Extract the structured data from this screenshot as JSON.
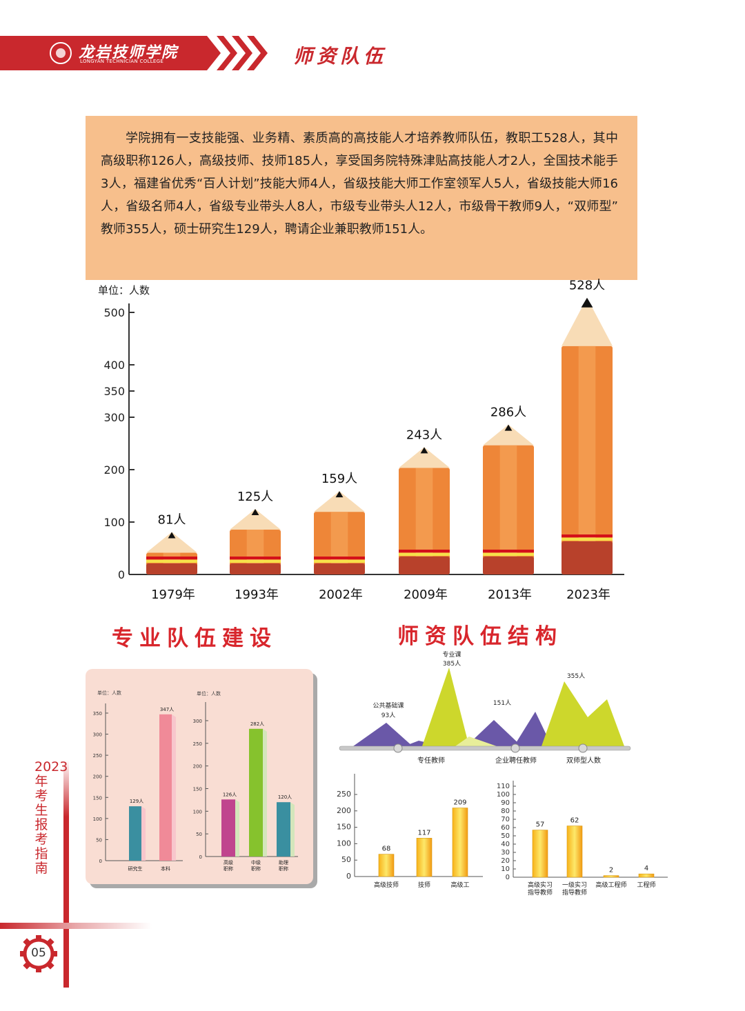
{
  "header": {
    "school_name": "龙岩技师学院",
    "school_name_en": "LONGYAN TECHNICIAN COLLEGE",
    "section_title": "师资队伍",
    "logo_icon": "school-emblem-icon",
    "accent_color": "#c9282d"
  },
  "intro": {
    "text": "学院拥有一支技能强、业务精、素质高的高技能人才培养教师队伍，教职工528人，其中高级职称126人，高级技师、技师185人，享受国务院特殊津贴高技能人才2人，全国技术能手3人，福建省优秀“百人计划”技能大师4人，省级技能大师工作室领军人5人，省级技能大师16人，省级名师4人，省级专业带头人8人，市级专业带头人12人，市级骨干教师9人，“双师型” 教师355人，硕士研究生129人，聘请企业兼职教师151人。",
    "bg_color": "#f7bf8c"
  },
  "headings": {
    "team_building": "专业队伍建设",
    "structure": "师资队伍结构"
  },
  "side_text": "2023年考生报考指南",
  "page_number": "05",
  "chart_data": [
    {
      "type": "bar",
      "ylabel": "单位：人数",
      "y_ticks": [
        "500",
        "400",
        "350",
        "300",
        "200",
        "100",
        "0"
      ],
      "categories": [
        "1979年",
        "1993年",
        "2002年",
        "2009年",
        "2013年",
        "2023年"
      ],
      "values": [
        81,
        125,
        159,
        243,
        286,
        528
      ],
      "value_labels": [
        "81人",
        "125人",
        "159人",
        "243人",
        "286人",
        "528人"
      ]
    },
    {
      "type": "bar",
      "ylabel": "单位：人数",
      "y_ticks": [
        "350",
        "300",
        "250",
        "200",
        "150",
        "100",
        "50",
        "0"
      ],
      "categories": [
        "研究生",
        "本科"
      ],
      "values": [
        129,
        347
      ],
      "value_labels": [
        "129人",
        "347人"
      ],
      "colors": [
        "#3a8fa0",
        "#f08a98"
      ]
    },
    {
      "type": "bar",
      "ylabel": "单位：人数",
      "y_ticks": [
        "300",
        "250",
        "200",
        "150",
        "100",
        "50",
        "0"
      ],
      "categories": [
        "高级\n职称",
        "中级\n职称",
        "助理\n职称"
      ],
      "values": [
        126,
        282,
        120
      ],
      "value_labels": [
        "126人",
        "282人",
        "120人"
      ],
      "colors": [
        "#c0458e",
        "#86c22d",
        "#3a8fa0"
      ]
    },
    {
      "type": "area",
      "series": [
        {
          "label": "公共基础课",
          "value_label": "93人",
          "value": 93
        },
        {
          "label": "专业课",
          "value_label": "385人",
          "value": 385
        },
        {
          "label": "",
          "value_label": "151人",
          "value": 151
        },
        {
          "label": "",
          "value_label": "355人",
          "value": 355
        }
      ],
      "axis_labels": [
        "专任教师",
        "企业聘任教师",
        "双师型人数"
      ]
    },
    {
      "type": "bar",
      "y_ticks": [
        "250",
        "200",
        "150",
        "100",
        "50",
        "0"
      ],
      "categories": [
        "高级技师",
        "技师",
        "高级工"
      ],
      "values": [
        68,
        117,
        209
      ],
      "value_labels": [
        "68",
        "117",
        "209"
      ]
    },
    {
      "type": "bar",
      "y_ticks": [
        "110",
        "100",
        "90",
        "80",
        "70",
        "60",
        "50",
        "40",
        "30",
        "20",
        "10",
        "0"
      ],
      "categories": [
        "高级实习\n指导教师",
        "一级实习\n指导教师",
        "高级工程师",
        "工程师"
      ],
      "values": [
        57,
        62,
        2,
        4
      ],
      "value_labels": [
        "57",
        "62",
        "2",
        "4"
      ]
    }
  ]
}
